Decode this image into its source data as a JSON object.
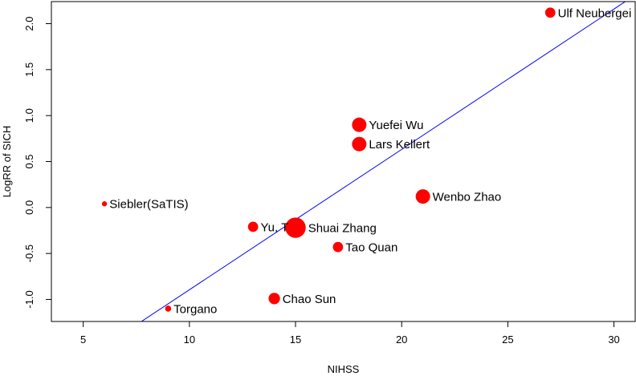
{
  "chart_data": {
    "type": "scatter",
    "xlabel": "NIHSS",
    "ylabel": "LogRR of SICH",
    "xlim": [
      3.5,
      31
    ],
    "ylim": [
      -1.24,
      2.24
    ],
    "xticks": [
      5,
      10,
      15,
      20,
      25,
      30
    ],
    "xtick_labels": [
      "5",
      "10",
      "15",
      "20",
      "25",
      "30"
    ],
    "yticks": [
      -1.0,
      -0.5,
      0.0,
      0.5,
      1.0,
      1.5,
      2.0
    ],
    "ytick_labels": [
      "-1.0",
      "-0.5",
      "0.0",
      "0.5",
      "1.0",
      "1.5",
      "2.0"
    ],
    "grid": false,
    "point_color": "#ff0000",
    "points": [
      {
        "label": "Ulf Neubergei",
        "x": 27,
        "y": 2.12,
        "weight": 2
      },
      {
        "label": "Yuefei Wu",
        "x": 18,
        "y": 0.9,
        "weight": 4
      },
      {
        "label": "Lars Kellert",
        "x": 18,
        "y": 0.69,
        "weight": 4
      },
      {
        "label": "Wenbo Zhao",
        "x": 21,
        "y": 0.12,
        "weight": 4
      },
      {
        "label": "Siebler(SaTIS)",
        "x": 6,
        "y": 0.04,
        "weight": 0.5
      },
      {
        "label": "Yu, T",
        "x": 13,
        "y": -0.21,
        "weight": 2
      },
      {
        "label": "Shuai Zhang",
        "x": 15,
        "y": -0.22,
        "weight": 8
      },
      {
        "label": "Tao Quan",
        "x": 17,
        "y": -0.43,
        "weight": 2
      },
      {
        "label": "Chao Sun",
        "x": 14,
        "y": -0.99,
        "weight": 2.5
      },
      {
        "label": "Torgano",
        "x": 9,
        "y": -1.1,
        "weight": 0.7
      }
    ],
    "regression_line": {
      "color": "#0000ff",
      "slope": 0.1527,
      "intercept": -2.422
    }
  }
}
